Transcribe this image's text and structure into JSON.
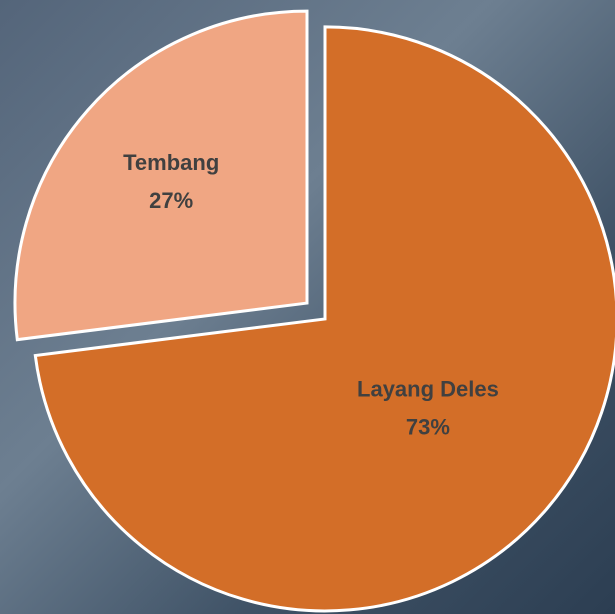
{
  "chart_data": {
    "type": "pie",
    "categories": [
      "Layang Deles",
      "Tembang"
    ],
    "values": [
      73,
      27
    ],
    "value_labels": [
      "73%",
      "27%"
    ],
    "colors": [
      "#d36e28",
      "#f0a683"
    ]
  }
}
